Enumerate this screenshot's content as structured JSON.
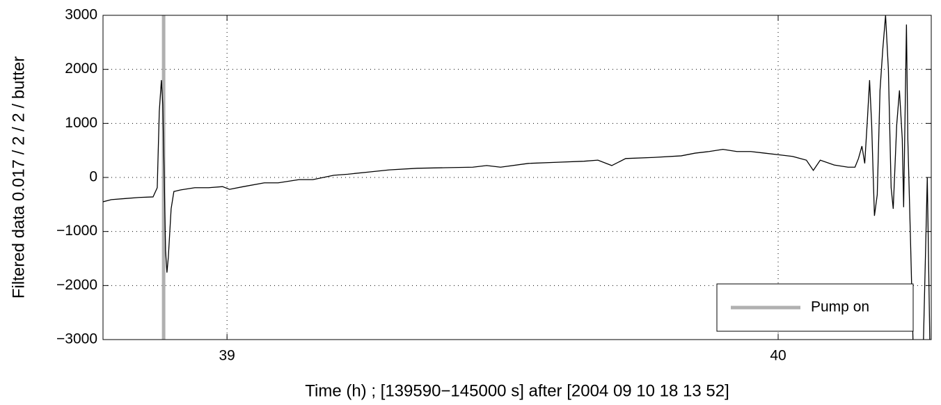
{
  "chart_data": {
    "type": "line",
    "xlabel": "Time (h) ; [139590−145000 s] after [2004 09 10 18 13 52]",
    "ylabel": "Filtered data  0.017 / 2 / 2 / butter",
    "xlim": [
      38.775,
      40.2778
    ],
    "xticks": [
      39,
      40
    ],
    "ylim": [
      -3000,
      3000
    ],
    "yticks": [
      {
        "value": -3000,
        "label": "−3000"
      },
      {
        "value": -2000,
        "label": "−2000"
      },
      {
        "value": -1000,
        "label": "−1000"
      },
      0,
      1000,
      2000,
      3000
    ],
    "grid": true,
    "legend": "lower right",
    "x": [
      38.775,
      38.7901,
      38.8154,
      38.8406,
      38.8658,
      38.8734,
      38.8771,
      38.8809,
      38.8834,
      38.886,
      38.8885,
      38.891,
      38.8935,
      38.8986,
      38.9036,
      38.9162,
      38.9415,
      38.9667,
      38.9919,
      39.0045,
      39.0297,
      39.0676,
      39.0928,
      39.1306,
      39.1558,
      39.1937,
      39.2189,
      39.2567,
      39.2945,
      39.345,
      39.3954,
      39.4459,
      39.4711,
      39.4963,
      39.5468,
      39.5972,
      39.6476,
      39.6729,
      39.6981,
      39.7233,
      39.7737,
      39.8242,
      39.8494,
      39.8746,
      39.8998,
      39.9251,
      39.9503,
      39.9755,
      40.0007,
      40.0259,
      40.0512,
      40.0638,
      40.0764,
      40.1016,
      40.1268,
      40.1394,
      40.1457,
      40.152,
      40.1571,
      40.1621,
      40.1659,
      40.1697,
      40.1747,
      40.1798,
      40.1848,
      40.1899,
      40.1949,
      40.2,
      40.205,
      40.2088,
      40.2151,
      40.2201,
      40.2252,
      40.2277,
      40.2328,
      40.2353,
      40.2403,
      40.2454,
      40.263,
      40.2706,
      40.2756
    ],
    "series": [
      {
        "color": "#000000",
        "values": [
          -450,
          -410,
          -390,
          -370,
          -360,
          -190,
          1220,
          1800,
          1350,
          60,
          -1350,
          -1760,
          -1480,
          -580,
          -260,
          -230,
          -190,
          -190,
          -170,
          -220,
          -170,
          -100,
          -100,
          -40,
          -40,
          40,
          60,
          100,
          140,
          170,
          180,
          190,
          220,
          190,
          260,
          280,
          300,
          320,
          220,
          350,
          370,
          400,
          450,
          480,
          520,
          480,
          480,
          450,
          420,
          390,
          320,
          130,
          320,
          230,
          190,
          190,
          350,
          580,
          260,
          1100,
          1800,
          970,
          -710,
          -320,
          1610,
          2380,
          3000,
          2000,
          -190,
          -580,
          970,
          1610,
          710,
          -550,
          2830,
          710,
          -1220,
          -3300,
          -3300,
          0,
          -3300
        ]
      }
    ],
    "markers": [
      {
        "name": "Pump on",
        "x": 38.885,
        "color": "#b0b0b0"
      }
    ]
  }
}
